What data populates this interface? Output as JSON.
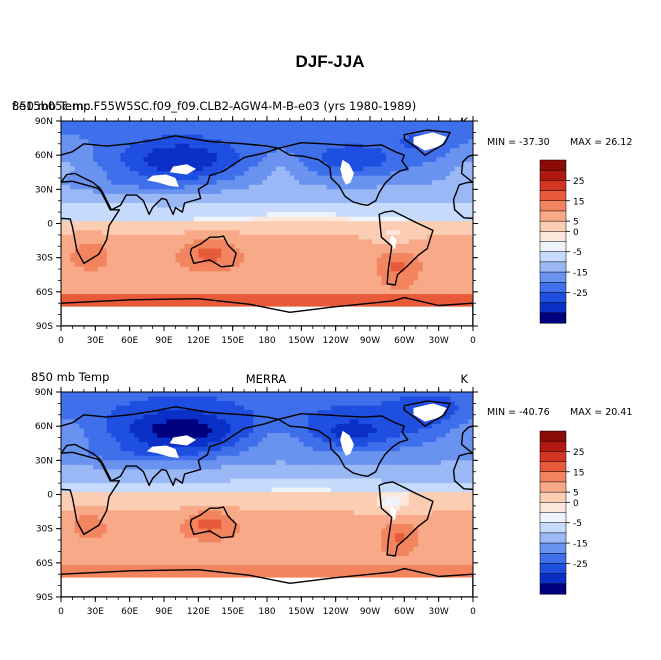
{
  "chart_data": [
    {
      "type": "heatmap",
      "figure_title": "DJF-JJA",
      "left_label": "f.e15b05c.mc.F55W5SC.f09_f09.CLB2-AGW4-M-B-e03 (yrs 1980-1989)",
      "left_label_overlap": "850 mb Temp",
      "center_label": "",
      "right_label": "K",
      "min_text": "MIN = -37.30",
      "max_text": "MAX =  26.12",
      "min": -37.3,
      "max": 26.12,
      "xticks": [
        "0",
        "30E",
        "60E",
        "90E",
        "120E",
        "150E",
        "180",
        "150W",
        "120W",
        "90W",
        "60W",
        "30W",
        "0"
      ],
      "yticks": [
        "90N",
        "60N",
        "30N",
        "0",
        "30S",
        "60S",
        "90S"
      ],
      "xlim": [
        0,
        360
      ],
      "ylim": [
        -90,
        90
      ],
      "colorbar_labels": [
        "25",
        "15",
        "5",
        "0",
        "-5",
        "-15",
        "-25"
      ]
    },
    {
      "type": "heatmap",
      "figure_title": "",
      "left_label": "850 mb Temp",
      "left_label_overlap": "",
      "center_label": "MERRA",
      "right_label": "K",
      "min_text": "MIN = -40.76",
      "max_text": "MAX =  20.41",
      "min": -40.76,
      "max": 20.41,
      "xticks": [
        "0",
        "30E",
        "60E",
        "90E",
        "120E",
        "150E",
        "180",
        "150W",
        "120W",
        "90W",
        "60W",
        "30W",
        "0"
      ],
      "yticks": [
        "90N",
        "60N",
        "30N",
        "0",
        "30S",
        "60S",
        "90S"
      ],
      "xlim": [
        0,
        360
      ],
      "ylim": [
        -90,
        90
      ],
      "colorbar_labels": [
        "25",
        "15",
        "5",
        "0",
        "-5",
        "-15",
        "-25"
      ]
    }
  ],
  "palette": [
    "#00007f",
    "#0a30c8",
    "#1f4fe0",
    "#3f6fea",
    "#6a93f0",
    "#9ab8f5",
    "#c6dafb",
    "#eef4fe",
    "#fde8dc",
    "#fbcdb3",
    "#f7a988",
    "#f2845f",
    "#e85b3a",
    "#d23520",
    "#b0190f",
    "#8a0b07"
  ]
}
